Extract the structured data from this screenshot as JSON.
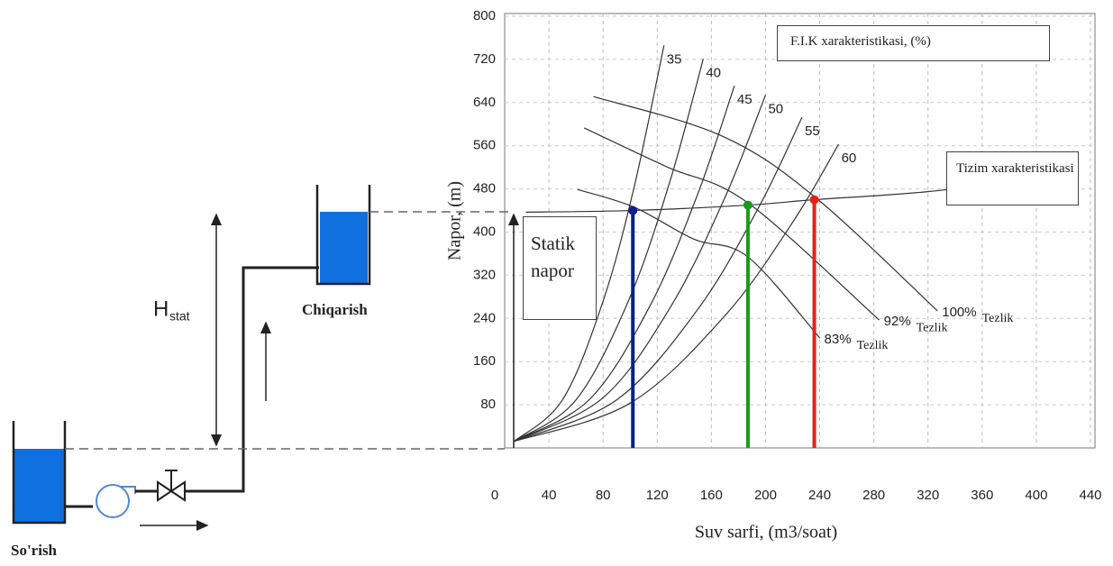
{
  "chart_data": {
    "type": "line",
    "x_label": "Suv sarfi, (m3/soat)",
    "y_label": "Napor, (m)",
    "xlim": [
      0,
      440
    ],
    "ylim": [
      0,
      800
    ],
    "xticks": [
      0,
      40,
      80,
      120,
      160,
      200,
      240,
      280,
      320,
      360,
      400,
      440
    ],
    "yticks": [
      80,
      160,
      240,
      320,
      400,
      480,
      560,
      640,
      720,
      800
    ],
    "grid": true,
    "efficiency_title": "F.I.K xarakteristikasi, (%)",
    "static_head_label": "Statik napor",
    "efficiency_curves": [
      {
        "name": "35",
        "x": [
          14,
          50,
          80,
          103,
          125
        ],
        "values": [
          12,
          89,
          272,
          484,
          746
        ]
      },
      {
        "name": "40",
        "x": [
          14,
          60,
          100,
          130,
          154
        ],
        "values": [
          12,
          89,
          280,
          499,
          721
        ]
      },
      {
        "name": "45",
        "x": [
          14,
          70,
          115,
          150,
          177
        ],
        "values": [
          12,
          90,
          265,
          471,
          671
        ]
      },
      {
        "name": "50",
        "x": [
          14,
          80,
          130,
          170,
          200
        ],
        "values": [
          12,
          93,
          262,
          464,
          654
        ]
      },
      {
        "name": "55",
        "x": [
          14,
          90,
          150,
          195,
          227
        ],
        "values": [
          12,
          89,
          257,
          446,
          613
        ]
      },
      {
        "name": "60",
        "x": [
          14,
          100,
          170,
          220,
          254
        ],
        "values": [
          12,
          83,
          245,
          418,
          563
        ]
      }
    ],
    "pump_curves": [
      {
        "name": "100%",
        "speed_label": "Tezlik",
        "x": [
          73,
          167,
          236,
          327
        ],
        "values": [
          651,
          579,
          466,
          254
        ]
      },
      {
        "name": "92%",
        "speed_label": "Tezlik",
        "x": [
          66,
          127,
          187,
          284
        ],
        "values": [
          593,
          521,
          454,
          237
        ]
      },
      {
        "name": "83%",
        "speed_label": "Tezlik",
        "x": [
          61,
          103,
          147,
          187,
          240
        ],
        "values": [
          479,
          446,
          387,
          354,
          204
        ]
      }
    ],
    "system_curve": {
      "name": "Tizim xarakteristikasi",
      "x": [
        23,
        102,
        187,
        236,
        320,
        420
      ],
      "values": [
        437,
        440,
        450,
        460,
        475,
        504
      ]
    },
    "operating_points": [
      {
        "x": 102,
        "y": 440,
        "color": "#0b1f8a"
      },
      {
        "x": 187,
        "y": 450,
        "color": "#1a9a1a"
      },
      {
        "x": 236,
        "y": 460,
        "color": "#e8201a"
      }
    ]
  },
  "diagram": {
    "suction": "So'rish",
    "discharge": "Chiqarish",
    "h": "H",
    "h_sub": "stat"
  }
}
